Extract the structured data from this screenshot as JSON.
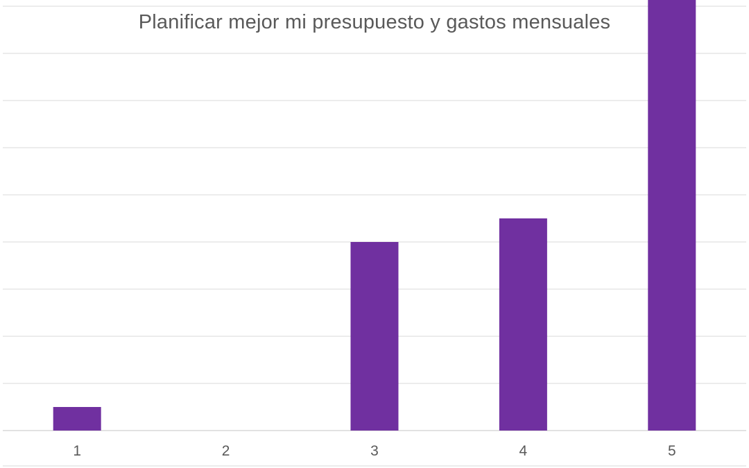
{
  "chart_data": {
    "type": "bar",
    "title": "Planificar mejor mi presupuesto y gastos mensuales",
    "xlabel": "",
    "ylabel": "",
    "categories": [
      "1",
      "2",
      "3",
      "4",
      "5"
    ],
    "values": [
      1,
      0,
      8,
      9,
      20
    ],
    "ylim": [
      0,
      22
    ],
    "y_gridline_step": 2,
    "y_tick_labels_shown": false,
    "grid": true,
    "legend": "none",
    "colors": {
      "bar": "#7030A0",
      "grid": "#D9D9D9",
      "text": "#595959"
    }
  }
}
